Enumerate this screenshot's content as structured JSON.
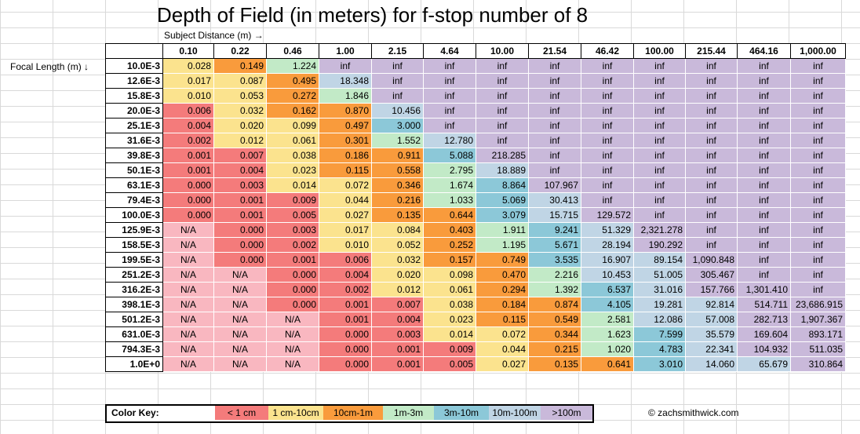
{
  "chart_data": {
    "type": "table",
    "title": "Depth of Field (in meters) for f-stop number of 8",
    "xlabel": "Subject Distance (m) →",
    "ylabel": "Focal Length (m) ↓",
    "columns": [
      "0.10",
      "0.22",
      "0.46",
      "1.00",
      "2.15",
      "4.64",
      "10.00",
      "21.54",
      "46.42",
      "100.00",
      "215.44",
      "464.16",
      "1,000.00"
    ],
    "rows": [
      {
        "label": "10.0E-3",
        "values": [
          "0.028",
          "0.149",
          "1.224",
          "inf",
          "inf",
          "inf",
          "inf",
          "inf",
          "inf",
          "inf",
          "inf",
          "inf",
          "inf"
        ]
      },
      {
        "label": "12.6E-3",
        "values": [
          "0.017",
          "0.087",
          "0.495",
          "18.348",
          "inf",
          "inf",
          "inf",
          "inf",
          "inf",
          "inf",
          "inf",
          "inf",
          "inf"
        ]
      },
      {
        "label": "15.8E-3",
        "values": [
          "0.010",
          "0.053",
          "0.272",
          "1.846",
          "inf",
          "inf",
          "inf",
          "inf",
          "inf",
          "inf",
          "inf",
          "inf",
          "inf"
        ]
      },
      {
        "label": "20.0E-3",
        "values": [
          "0.006",
          "0.032",
          "0.162",
          "0.870",
          "10.456",
          "inf",
          "inf",
          "inf",
          "inf",
          "inf",
          "inf",
          "inf",
          "inf"
        ]
      },
      {
        "label": "25.1E-3",
        "values": [
          "0.004",
          "0.020",
          "0.099",
          "0.497",
          "3.000",
          "inf",
          "inf",
          "inf",
          "inf",
          "inf",
          "inf",
          "inf",
          "inf"
        ]
      },
      {
        "label": "31.6E-3",
        "values": [
          "0.002",
          "0.012",
          "0.061",
          "0.301",
          "1.552",
          "12.780",
          "inf",
          "inf",
          "inf",
          "inf",
          "inf",
          "inf",
          "inf"
        ]
      },
      {
        "label": "39.8E-3",
        "values": [
          "0.001",
          "0.007",
          "0.038",
          "0.186",
          "0.911",
          "5.088",
          "218.285",
          "inf",
          "inf",
          "inf",
          "inf",
          "inf",
          "inf"
        ]
      },
      {
        "label": "50.1E-3",
        "values": [
          "0.001",
          "0.004",
          "0.023",
          "0.115",
          "0.558",
          "2.795",
          "18.889",
          "inf",
          "inf",
          "inf",
          "inf",
          "inf",
          "inf"
        ]
      },
      {
        "label": "63.1E-3",
        "values": [
          "0.000",
          "0.003",
          "0.014",
          "0.072",
          "0.346",
          "1.674",
          "8.864",
          "107.967",
          "inf",
          "inf",
          "inf",
          "inf",
          "inf"
        ]
      },
      {
        "label": "79.4E-3",
        "values": [
          "0.000",
          "0.001",
          "0.009",
          "0.044",
          "0.216",
          "1.033",
          "5.069",
          "30.413",
          "inf",
          "inf",
          "inf",
          "inf",
          "inf"
        ]
      },
      {
        "label": "100.0E-3",
        "values": [
          "0.000",
          "0.001",
          "0.005",
          "0.027",
          "0.135",
          "0.644",
          "3.079",
          "15.715",
          "129.572",
          "inf",
          "inf",
          "inf",
          "inf"
        ]
      },
      {
        "label": "125.9E-3",
        "values": [
          "N/A",
          "0.000",
          "0.003",
          "0.017",
          "0.084",
          "0.403",
          "1.911",
          "9.241",
          "51.329",
          "2,321.278",
          "inf",
          "inf",
          "inf"
        ]
      },
      {
        "label": "158.5E-3",
        "values": [
          "N/A",
          "0.000",
          "0.002",
          "0.010",
          "0.052",
          "0.252",
          "1.195",
          "5.671",
          "28.194",
          "190.292",
          "inf",
          "inf",
          "inf"
        ]
      },
      {
        "label": "199.5E-3",
        "values": [
          "N/A",
          "0.000",
          "0.001",
          "0.006",
          "0.032",
          "0.157",
          "0.749",
          "3.535",
          "16.907",
          "89.154",
          "1,090.848",
          "inf",
          "inf"
        ]
      },
      {
        "label": "251.2E-3",
        "values": [
          "N/A",
          "N/A",
          "0.000",
          "0.004",
          "0.020",
          "0.098",
          "0.470",
          "2.216",
          "10.453",
          "51.005",
          "305.467",
          "inf",
          "inf"
        ]
      },
      {
        "label": "316.2E-3",
        "values": [
          "N/A",
          "N/A",
          "0.000",
          "0.002",
          "0.012",
          "0.061",
          "0.294",
          "1.392",
          "6.537",
          "31.016",
          "157.766",
          "1,301.410",
          "inf"
        ]
      },
      {
        "label": "398.1E-3",
        "values": [
          "N/A",
          "N/A",
          "0.000",
          "0.001",
          "0.007",
          "0.038",
          "0.184",
          "0.874",
          "4.105",
          "19.281",
          "92.814",
          "514.711",
          "23,686.915"
        ]
      },
      {
        "label": "501.2E-3",
        "values": [
          "N/A",
          "N/A",
          "N/A",
          "0.001",
          "0.004",
          "0.023",
          "0.115",
          "0.549",
          "2.581",
          "12.086",
          "57.008",
          "282.713",
          "1,907.367"
        ]
      },
      {
        "label": "631.0E-3",
        "values": [
          "N/A",
          "N/A",
          "N/A",
          "0.000",
          "0.003",
          "0.014",
          "0.072",
          "0.344",
          "1.623",
          "7.599",
          "35.579",
          "169.604",
          "893.171"
        ]
      },
      {
        "label": "794.3E-3",
        "values": [
          "N/A",
          "N/A",
          "N/A",
          "0.000",
          "0.001",
          "0.009",
          "0.044",
          "0.215",
          "1.020",
          "4.783",
          "22.341",
          "104.932",
          "511.035"
        ]
      },
      {
        "label": "1.0E+0",
        "values": [
          "N/A",
          "N/A",
          "N/A",
          "0.000",
          "0.001",
          "0.005",
          "0.027",
          "0.135",
          "0.641",
          "3.010",
          "14.060",
          "65.679",
          "310.864"
        ]
      }
    ],
    "color_key": {
      "label": "Color Key:",
      "items": [
        {
          "label": "< 1 cm",
          "color": "#f47b7b"
        },
        {
          "label": "1 cm-10cm",
          "color": "#fbe38e"
        },
        {
          "label": "10cm-1m",
          "color": "#f99b3c"
        },
        {
          "label": "1m-3m",
          "color": "#c2eac7"
        },
        {
          "label": "3m-10m",
          "color": "#8cc8d8"
        },
        {
          "label": "10m-100m",
          "color": "#c0d5e5"
        },
        {
          "label": ">100m",
          "color": "#c9b9da"
        }
      ],
      "na_color": "#f9b7c0"
    },
    "credit": "© zachsmithwick.com"
  }
}
